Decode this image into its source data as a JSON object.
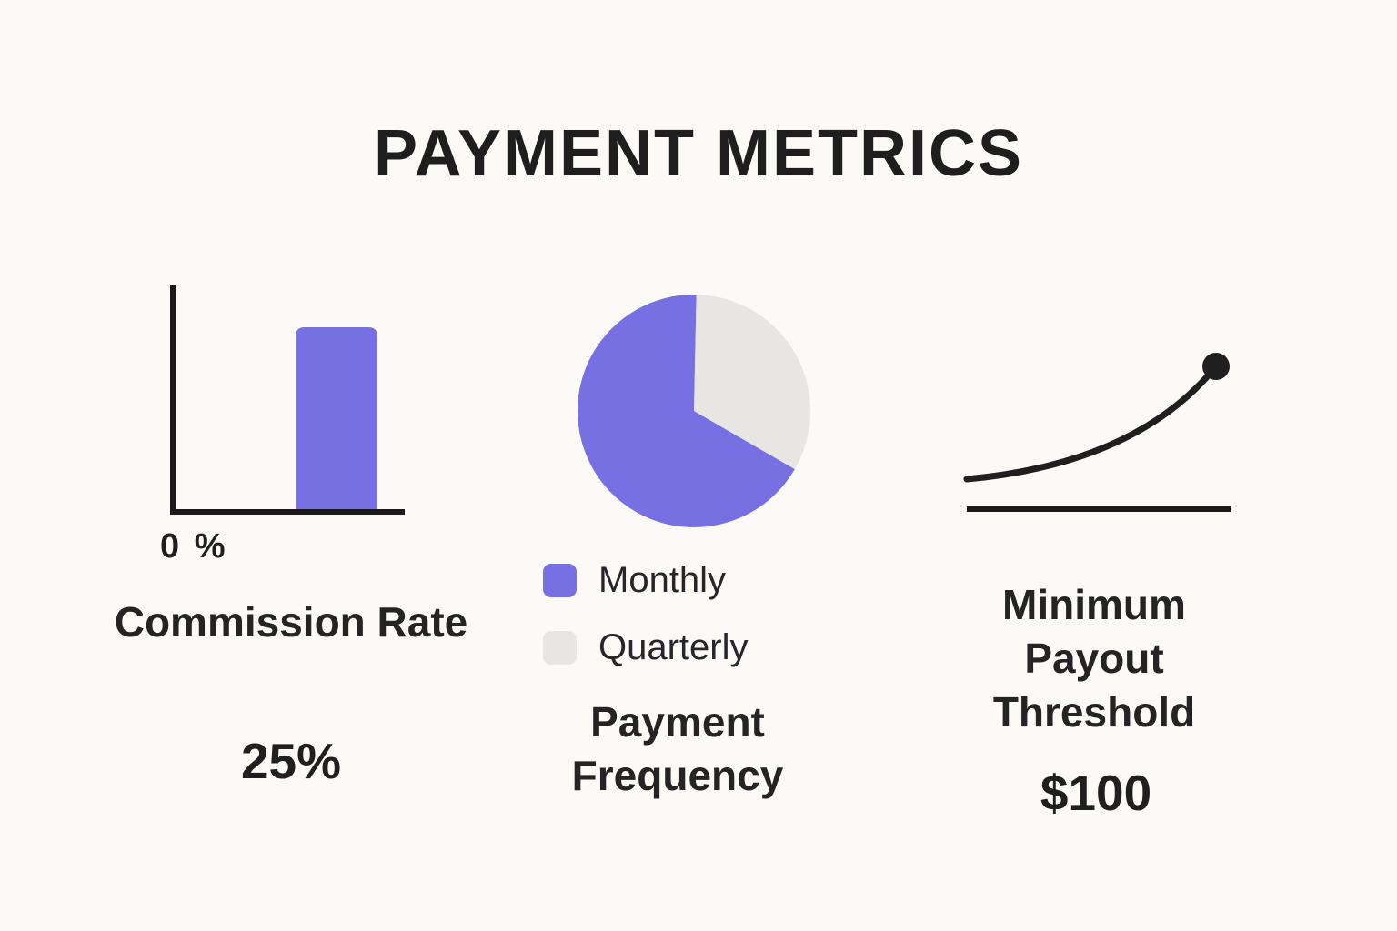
{
  "title": "PAYMENT METRICS",
  "colors": {
    "accent_purple": "#7670e2",
    "light_gray": "#e7e6e2",
    "ink": "#1f1f1f",
    "background": "#fbfaf7"
  },
  "panels": {
    "commission": {
      "axis_origin_label": "0 %",
      "label": "Commission Rate",
      "value": "25%"
    },
    "frequency": {
      "label": "Payment Frequency",
      "legend": [
        {
          "name": "Monthly",
          "color": "#7670e2"
        },
        {
          "name": "Quarterly",
          "color": "#e7e6e2"
        }
      ]
    },
    "threshold": {
      "label": "Minimum Payout Threshold",
      "value": "$100"
    }
  },
  "chart_data": [
    {
      "type": "bar",
      "title": "Commission Rate",
      "categories": [
        "Commission Rate"
      ],
      "values": [
        25
      ],
      "unit": "%",
      "baseline_label": "0 %",
      "bar_color": "#7670e2",
      "notes": "single rounded bar on plain x/y axes, no ticks or gridlines"
    },
    {
      "type": "pie",
      "title": "Payment Frequency",
      "labels": [
        "Monthly",
        "Quarterly"
      ],
      "values": [
        67,
        33
      ],
      "colors": [
        "#7670e2",
        "#e7e6e2"
      ],
      "start_angle_deg": 30,
      "legend_position": "below",
      "notes": "gray (Quarterly) wedge occupies top-right ~120 degrees starting at 12 o'clock"
    },
    {
      "type": "line",
      "title": "Minimum Payout Threshold",
      "value_label": "$100",
      "shape": "smooth upward-accelerating curve ending in a filled dot, horizontal baseline beneath",
      "line_color": "#1f1f1f"
    }
  ]
}
